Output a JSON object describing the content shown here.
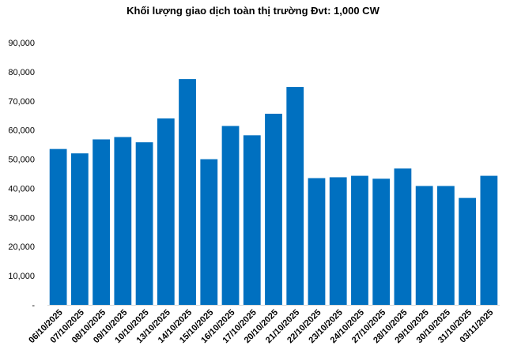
{
  "chart_data": {
    "type": "bar",
    "title": "Khối lượng giao dịch toàn thị trường Đvt: 1,000 CW",
    "categories": [
      "06/10/2025",
      "07/10/2025",
      "08/10/2025",
      "09/10/2025",
      "10/10/2025",
      "13/10/2025",
      "14/10/2025",
      "15/10/2025",
      "16/10/2025",
      "17/10/2025",
      "20/10/2025",
      "21/10/2025",
      "22/10/2025",
      "23/10/2025",
      "24/10/2025",
      "27/10/2025",
      "28/10/2025",
      "29/10/2025",
      "30/10/2025",
      "31/10/2025",
      "03/11/2025"
    ],
    "values": [
      53500,
      52000,
      56800,
      57600,
      55800,
      64000,
      77500,
      50000,
      61400,
      58200,
      65600,
      74800,
      43500,
      43800,
      44300,
      43300,
      46800,
      40800,
      40800,
      36700,
      44300
    ],
    "ylim": [
      0,
      90000
    ],
    "yticks": [
      0,
      10000,
      20000,
      30000,
      40000,
      50000,
      60000,
      70000,
      80000,
      90000
    ],
    "ytick_labels": [
      "-",
      "10,000",
      "20,000",
      "30,000",
      "40,000",
      "50,000",
      "60,000",
      "70,000",
      "80,000",
      "90,000"
    ],
    "bar_color": "#0070C0",
    "grid": false,
    "legend": "none"
  }
}
